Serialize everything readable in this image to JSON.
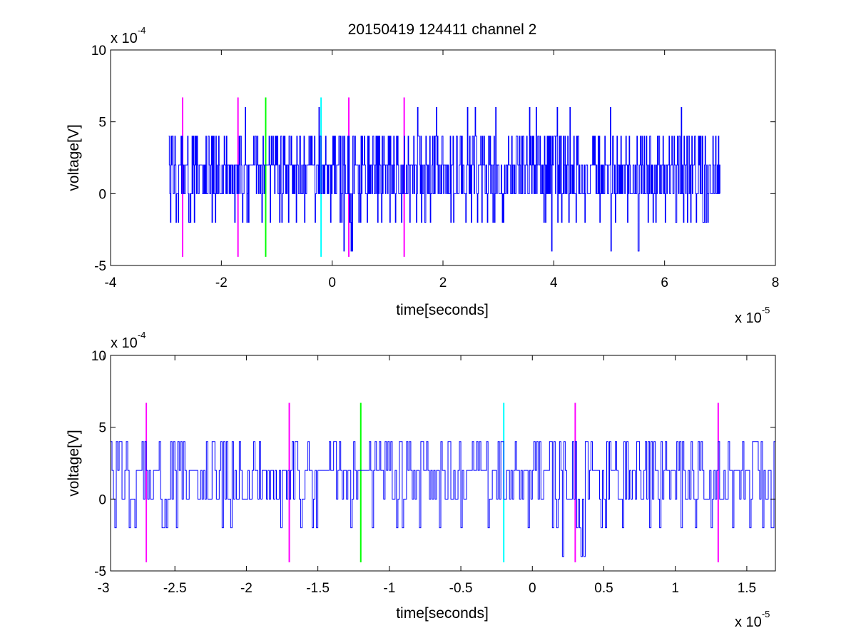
{
  "title": "20150419 124411 channel 2",
  "colors": {
    "signal": "#0000ff",
    "marker_magenta": "#ff00ff",
    "marker_green": "#00ff00",
    "marker_cyan": "#00ffff",
    "axes": "#000000",
    "background": "#ffffff"
  },
  "chart_data": [
    {
      "type": "line",
      "title": "20150419 124411 channel 2",
      "xlabel": "time[seconds]",
      "ylabel": "voltage[V]",
      "x_multiplier": {
        "base": "x 10",
        "exp": "-5"
      },
      "y_multiplier": {
        "base": "x 10",
        "exp": "-4"
      },
      "xlim": [
        -4e-05,
        8e-05
      ],
      "ylim": [
        -0.0005,
        0.001
      ],
      "xticks": [
        -4,
        -2,
        0,
        2,
        4,
        6,
        8
      ],
      "xtick_labels": [
        "-4",
        "-2",
        "0",
        "2",
        "4",
        "6",
        "8"
      ],
      "yticks": [
        -5,
        0,
        5,
        10
      ],
      "ytick_labels": [
        "-5",
        "0",
        "5",
        "10"
      ],
      "grid": false,
      "series": [
        {
          "color": "#0000ff",
          "x_range": [
            -2.95e-05,
            7e-05
          ],
          "sample_step": 1e-07,
          "value_levels": [
            -0.0004,
            -0.0002,
            0,
            0.0002,
            0.0004,
            0.0006
          ],
          "baseline": 0.0002
        }
      ],
      "vlines": [
        {
          "x": -2.7e-05,
          "color": "#ff00ff",
          "ymin": -0.00044,
          "ymax": 0.00067
        },
        {
          "x": -1.7e-05,
          "color": "#ff00ff",
          "ymin": -0.00044,
          "ymax": 0.00067
        },
        {
          "x": -1.2e-05,
          "color": "#00ff00",
          "ymin": -0.00044,
          "ymax": 0.00067
        },
        {
          "x": -2e-06,
          "color": "#00ffff",
          "ymin": -0.00044,
          "ymax": 0.00067
        },
        {
          "x": 3e-06,
          "color": "#ff00ff",
          "ymin": -0.00044,
          "ymax": 0.00067
        },
        {
          "x": 1.3e-05,
          "color": "#ff00ff",
          "ymin": -0.00044,
          "ymax": 0.00067
        }
      ]
    },
    {
      "type": "line",
      "title": "",
      "xlabel": "time[seconds]",
      "ylabel": "voltage[V]",
      "x_multiplier": {
        "base": "x 10",
        "exp": "-5"
      },
      "y_multiplier": {
        "base": "x 10",
        "exp": "-4"
      },
      "xlim": [
        -2.95e-05,
        1.7e-05
      ],
      "ylim": [
        -0.0005,
        0.001
      ],
      "xticks": [
        -3,
        -2.5,
        -2,
        -1.5,
        -1,
        -0.5,
        0,
        0.5,
        1,
        1.5
      ],
      "xtick_labels": [
        "-3",
        "-2.5",
        "-2",
        "-1.5",
        "-1",
        "-0.5",
        "0",
        "0.5",
        "1",
        "1.5"
      ],
      "yticks": [
        -5,
        0,
        5,
        10
      ],
      "ytick_labels": [
        "-5",
        "0",
        "5",
        "10"
      ],
      "grid": false,
      "series": [
        {
          "color": "#0000ff",
          "x_range": [
            -2.95e-05,
            1.7e-05
          ],
          "sample_step": 1e-07,
          "value_levels": [
            -0.0004,
            -0.0002,
            0,
            0.0002,
            0.0004
          ],
          "baseline": 0.0002
        }
      ],
      "vlines": [
        {
          "x": -2.7e-05,
          "color": "#ff00ff",
          "ymin": -0.00044,
          "ymax": 0.00067
        },
        {
          "x": -1.7e-05,
          "color": "#ff00ff",
          "ymin": -0.00044,
          "ymax": 0.00067
        },
        {
          "x": -1.2e-05,
          "color": "#00ff00",
          "ymin": -0.00044,
          "ymax": 0.00067
        },
        {
          "x": -2e-06,
          "color": "#00ffff",
          "ymin": -0.00044,
          "ymax": 0.00067
        },
        {
          "x": 3e-06,
          "color": "#ff00ff",
          "ymin": -0.00044,
          "ymax": 0.00067
        },
        {
          "x": 1.3e-05,
          "color": "#ff00ff",
          "ymin": -0.00044,
          "ymax": 0.00067
        }
      ]
    }
  ]
}
